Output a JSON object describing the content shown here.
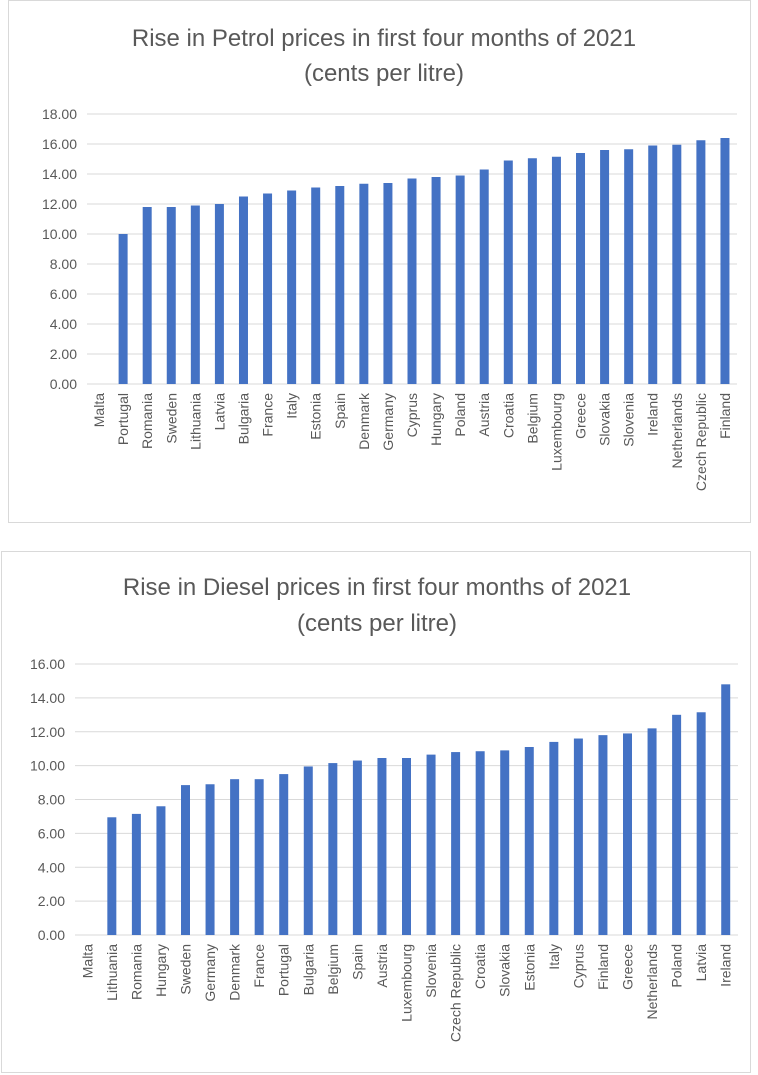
{
  "colors": {
    "bar": "#4472c4",
    "text": "#595959",
    "grid": "#d9d9d9"
  },
  "chart_data": [
    {
      "type": "bar",
      "title_line1": "Rise in Petrol prices in first four months of 2021",
      "title_line2": "(cents per litre)",
      "xlabel": "",
      "ylabel": "",
      "ylim": [
        0,
        18
      ],
      "ytick_step": 2,
      "ytick_labels": [
        "0.00",
        "2.00",
        "4.00",
        "6.00",
        "8.00",
        "10.00",
        "12.00",
        "14.00",
        "16.00",
        "18.00"
      ],
      "grid": true,
      "legend": "none",
      "categories": [
        "Malta",
        "Portugal",
        "Romania",
        "Sweden",
        "Lithuania",
        "Latvia",
        "Bulgaria",
        "France",
        "Italy",
        "Estonia",
        "Spain",
        "Denmark",
        "Germany",
        "Cyprus",
        "Hungary",
        "Poland",
        "Austria",
        "Croatia",
        "Belgium",
        "Luxembourg",
        "Greece",
        "Slovakia",
        "Slovenia",
        "Ireland",
        "Netherlands",
        "Czech Republic",
        "Finland"
      ],
      "values": [
        0,
        10.0,
        11.8,
        11.8,
        11.9,
        12.0,
        12.5,
        12.7,
        12.9,
        13.1,
        13.2,
        13.35,
        13.4,
        13.7,
        13.8,
        13.9,
        14.3,
        14.9,
        15.05,
        15.15,
        15.4,
        15.6,
        15.65,
        15.9,
        15.95,
        16.25,
        16.4
      ]
    },
    {
      "type": "bar",
      "title_line1": "Rise in Diesel prices in first four months of 2021",
      "title_line2": "(cents per litre)",
      "xlabel": "",
      "ylabel": "",
      "ylim": [
        0,
        16
      ],
      "ytick_step": 2,
      "ytick_labels": [
        "0.00",
        "2.00",
        "4.00",
        "6.00",
        "8.00",
        "10.00",
        "12.00",
        "14.00",
        "16.00"
      ],
      "grid": true,
      "legend": "none",
      "categories": [
        "Malta",
        "Lithuania",
        "Romania",
        "Hungary",
        "Sweden",
        "Germany",
        "Denmark",
        "France",
        "Portugal",
        "Bulgaria",
        "Belgium",
        "Spain",
        "Austria",
        "Luxembourg",
        "Slovenia",
        "Czech Republic",
        "Croatia",
        "Slovakia",
        "Estonia",
        "Italy",
        "Cyprus",
        "Finland",
        "Greece",
        "Netherlands",
        "Poland",
        "Latvia",
        "Ireland"
      ],
      "values": [
        0,
        6.95,
        7.15,
        7.6,
        8.85,
        8.9,
        9.2,
        9.2,
        9.5,
        9.95,
        10.15,
        10.3,
        10.45,
        10.45,
        10.65,
        10.8,
        10.85,
        10.9,
        11.1,
        11.4,
        11.6,
        11.8,
        11.9,
        12.2,
        13.0,
        13.15,
        14.8
      ]
    }
  ]
}
